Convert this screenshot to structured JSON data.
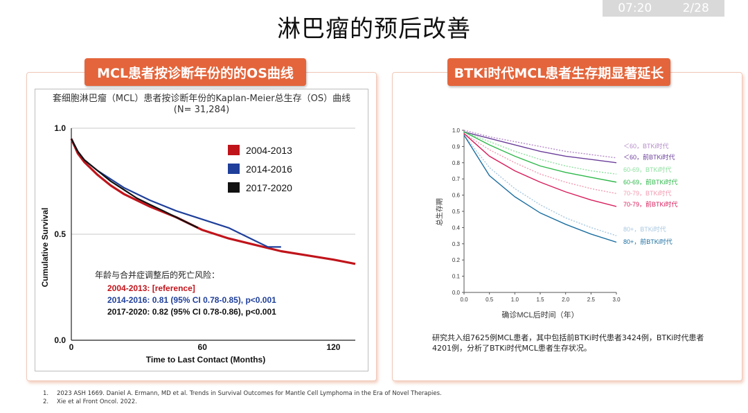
{
  "topbar": {
    "time": "07:20",
    "page": "2/28"
  },
  "slide_title": "淋巴瘤的预后改善",
  "left_panel": {
    "header": "MCL患者按诊断年份的的OS曲线",
    "chart_title_line1": "套细胞淋巴瘤（MCL）患者按诊断年份的Kaplan-Meier总生存（OS）曲线",
    "chart_title_line2": "(N= 31,284)",
    "hr_heading": "年龄与合并症调整后的死亡风险：",
    "hr_rows": [
      "2004-2013:  [reference]",
      "2014-2016:  0.81 (95% CI 0.78-0.85),  p<0.001",
      "2017-2020:  0.82 (95% CI 0.78-0.86),  p<0.001"
    ]
  },
  "right_panel": {
    "header": "BTKi时代MCL患者生存期显著延长",
    "description": "研究共入组7625例MCL患者，其中包括前BTKi时代患者3424例，BTKi时代患者4201例，分析了BTKi时代MCL患者生存状况。"
  },
  "references": [
    {
      "num": "1.",
      "text": "2023 ASH 1669. Daniel A. Ermann, MD et al. Trends in Survival Outcomes for Mantle Cell Lymphoma in the Era of Novel Therapies."
    },
    {
      "num": "2.",
      "text": "Xie et al Front Oncol. 2022."
    }
  ],
  "colors": {
    "accent": "#e4653b",
    "red": "#c0141b",
    "blue": "#1f3f9a",
    "black": "#111111"
  },
  "chart_data": [
    {
      "type": "line",
      "title": "套细胞淋巴瘤（MCL）患者按诊断年份的Kaplan-Meier总生存（OS）曲线",
      "xlabel": "Time to Last Contact (Months)",
      "ylabel": "Cumulative Survival",
      "xlim": [
        0,
        130
      ],
      "ylim": [
        0,
        1.0
      ],
      "xticks": [
        "0",
        "60",
        "120"
      ],
      "yticks": [
        "0.0",
        "0.5",
        "1.0"
      ],
      "series": [
        {
          "name": "2004-2013",
          "color": "#c0141b",
          "x": [
            0,
            3,
            6,
            12,
            18,
            24,
            36,
            48,
            60,
            72,
            84,
            96,
            108,
            120,
            130
          ],
          "y": [
            0.95,
            0.88,
            0.84,
            0.78,
            0.73,
            0.69,
            0.63,
            0.58,
            0.52,
            0.48,
            0.45,
            0.42,
            0.4,
            0.38,
            0.36
          ]
        },
        {
          "name": "2014-2016",
          "color": "#1f3f9a",
          "x": [
            0,
            3,
            6,
            12,
            18,
            24,
            36,
            48,
            60,
            66,
            72,
            78,
            84,
            90,
            96
          ],
          "y": [
            0.95,
            0.89,
            0.85,
            0.8,
            0.76,
            0.72,
            0.66,
            0.61,
            0.57,
            0.55,
            0.53,
            0.5,
            0.47,
            0.44,
            0.44
          ]
        },
        {
          "name": "2017-2020",
          "color": "#111111",
          "x": [
            0,
            3,
            6,
            12,
            18,
            24,
            30,
            36,
            42,
            48,
            54,
            58
          ],
          "y": [
            0.95,
            0.89,
            0.85,
            0.8,
            0.75,
            0.71,
            0.67,
            0.64,
            0.61,
            0.58,
            0.55,
            0.53
          ]
        }
      ],
      "legend": [
        "2004-2013",
        "2014-2016",
        "2017-2020"
      ]
    },
    {
      "type": "line",
      "xlabel": "确诊MCL后时间（年）",
      "ylabel": "总生存期",
      "xlim": [
        0,
        3.0
      ],
      "ylim": [
        0,
        1.0
      ],
      "xticks": [
        "0.0",
        "0.5",
        "1.0",
        "1.5",
        "2.0",
        "2.5",
        "3.0"
      ],
      "yticks": [
        "0.0",
        "0.1",
        "0.2",
        "0.3",
        "0.4",
        "0.5",
        "0.6",
        "0.7",
        "0.8",
        "0.9",
        "1.0"
      ],
      "series": [
        {
          "name": "＜60，BTKi时代",
          "color": "#b48ac8",
          "dash": true,
          "x": [
            0,
            0.5,
            1.0,
            1.5,
            2.0,
            2.5,
            3.0
          ],
          "y": [
            1.0,
            0.96,
            0.93,
            0.9,
            0.87,
            0.85,
            0.83
          ]
        },
        {
          "name": "＜60，前BTKi时代",
          "color": "#6a3d9a",
          "dash": false,
          "x": [
            0,
            0.5,
            1.0,
            1.5,
            2.0,
            2.5,
            3.0
          ],
          "y": [
            0.99,
            0.95,
            0.91,
            0.87,
            0.84,
            0.82,
            0.8
          ]
        },
        {
          "name": "60-69，BTKi时代",
          "color": "#8fe0a0",
          "dash": true,
          "x": [
            0,
            0.5,
            1.0,
            1.5,
            2.0,
            2.5,
            3.0
          ],
          "y": [
            0.99,
            0.93,
            0.87,
            0.82,
            0.78,
            0.75,
            0.73
          ]
        },
        {
          "name": "60-69，前BTKi时代",
          "color": "#2eb84a",
          "dash": false,
          "x": [
            0,
            0.5,
            1.0,
            1.5,
            2.0,
            2.5,
            3.0
          ],
          "y": [
            0.99,
            0.91,
            0.84,
            0.78,
            0.74,
            0.71,
            0.68
          ]
        },
        {
          "name": "70-79，BTKi时代",
          "color": "#f29ab0",
          "dash": true,
          "x": [
            0,
            0.5,
            1.0,
            1.5,
            2.0,
            2.5,
            3.0
          ],
          "y": [
            0.98,
            0.88,
            0.8,
            0.73,
            0.68,
            0.64,
            0.61
          ]
        },
        {
          "name": "70-79，前BTKi时代",
          "color": "#d81b5a",
          "dash": false,
          "x": [
            0,
            0.5,
            1.0,
            1.5,
            2.0,
            2.5,
            3.0
          ],
          "y": [
            0.98,
            0.84,
            0.75,
            0.68,
            0.62,
            0.57,
            0.53
          ]
        },
        {
          "name": "80+，BTKi时代",
          "color": "#a7c7e0",
          "dash": true,
          "x": [
            0,
            0.5,
            1.0,
            1.5,
            2.0,
            2.5,
            3.0
          ],
          "y": [
            0.97,
            0.77,
            0.64,
            0.54,
            0.46,
            0.4,
            0.35
          ]
        },
        {
          "name": "80+，前BTKi时代",
          "color": "#1b6ea0",
          "dash": false,
          "x": [
            0,
            0.5,
            1.0,
            1.5,
            2.0,
            2.5,
            3.0
          ],
          "y": [
            0.97,
            0.72,
            0.59,
            0.49,
            0.42,
            0.36,
            0.31
          ]
        }
      ]
    }
  ]
}
